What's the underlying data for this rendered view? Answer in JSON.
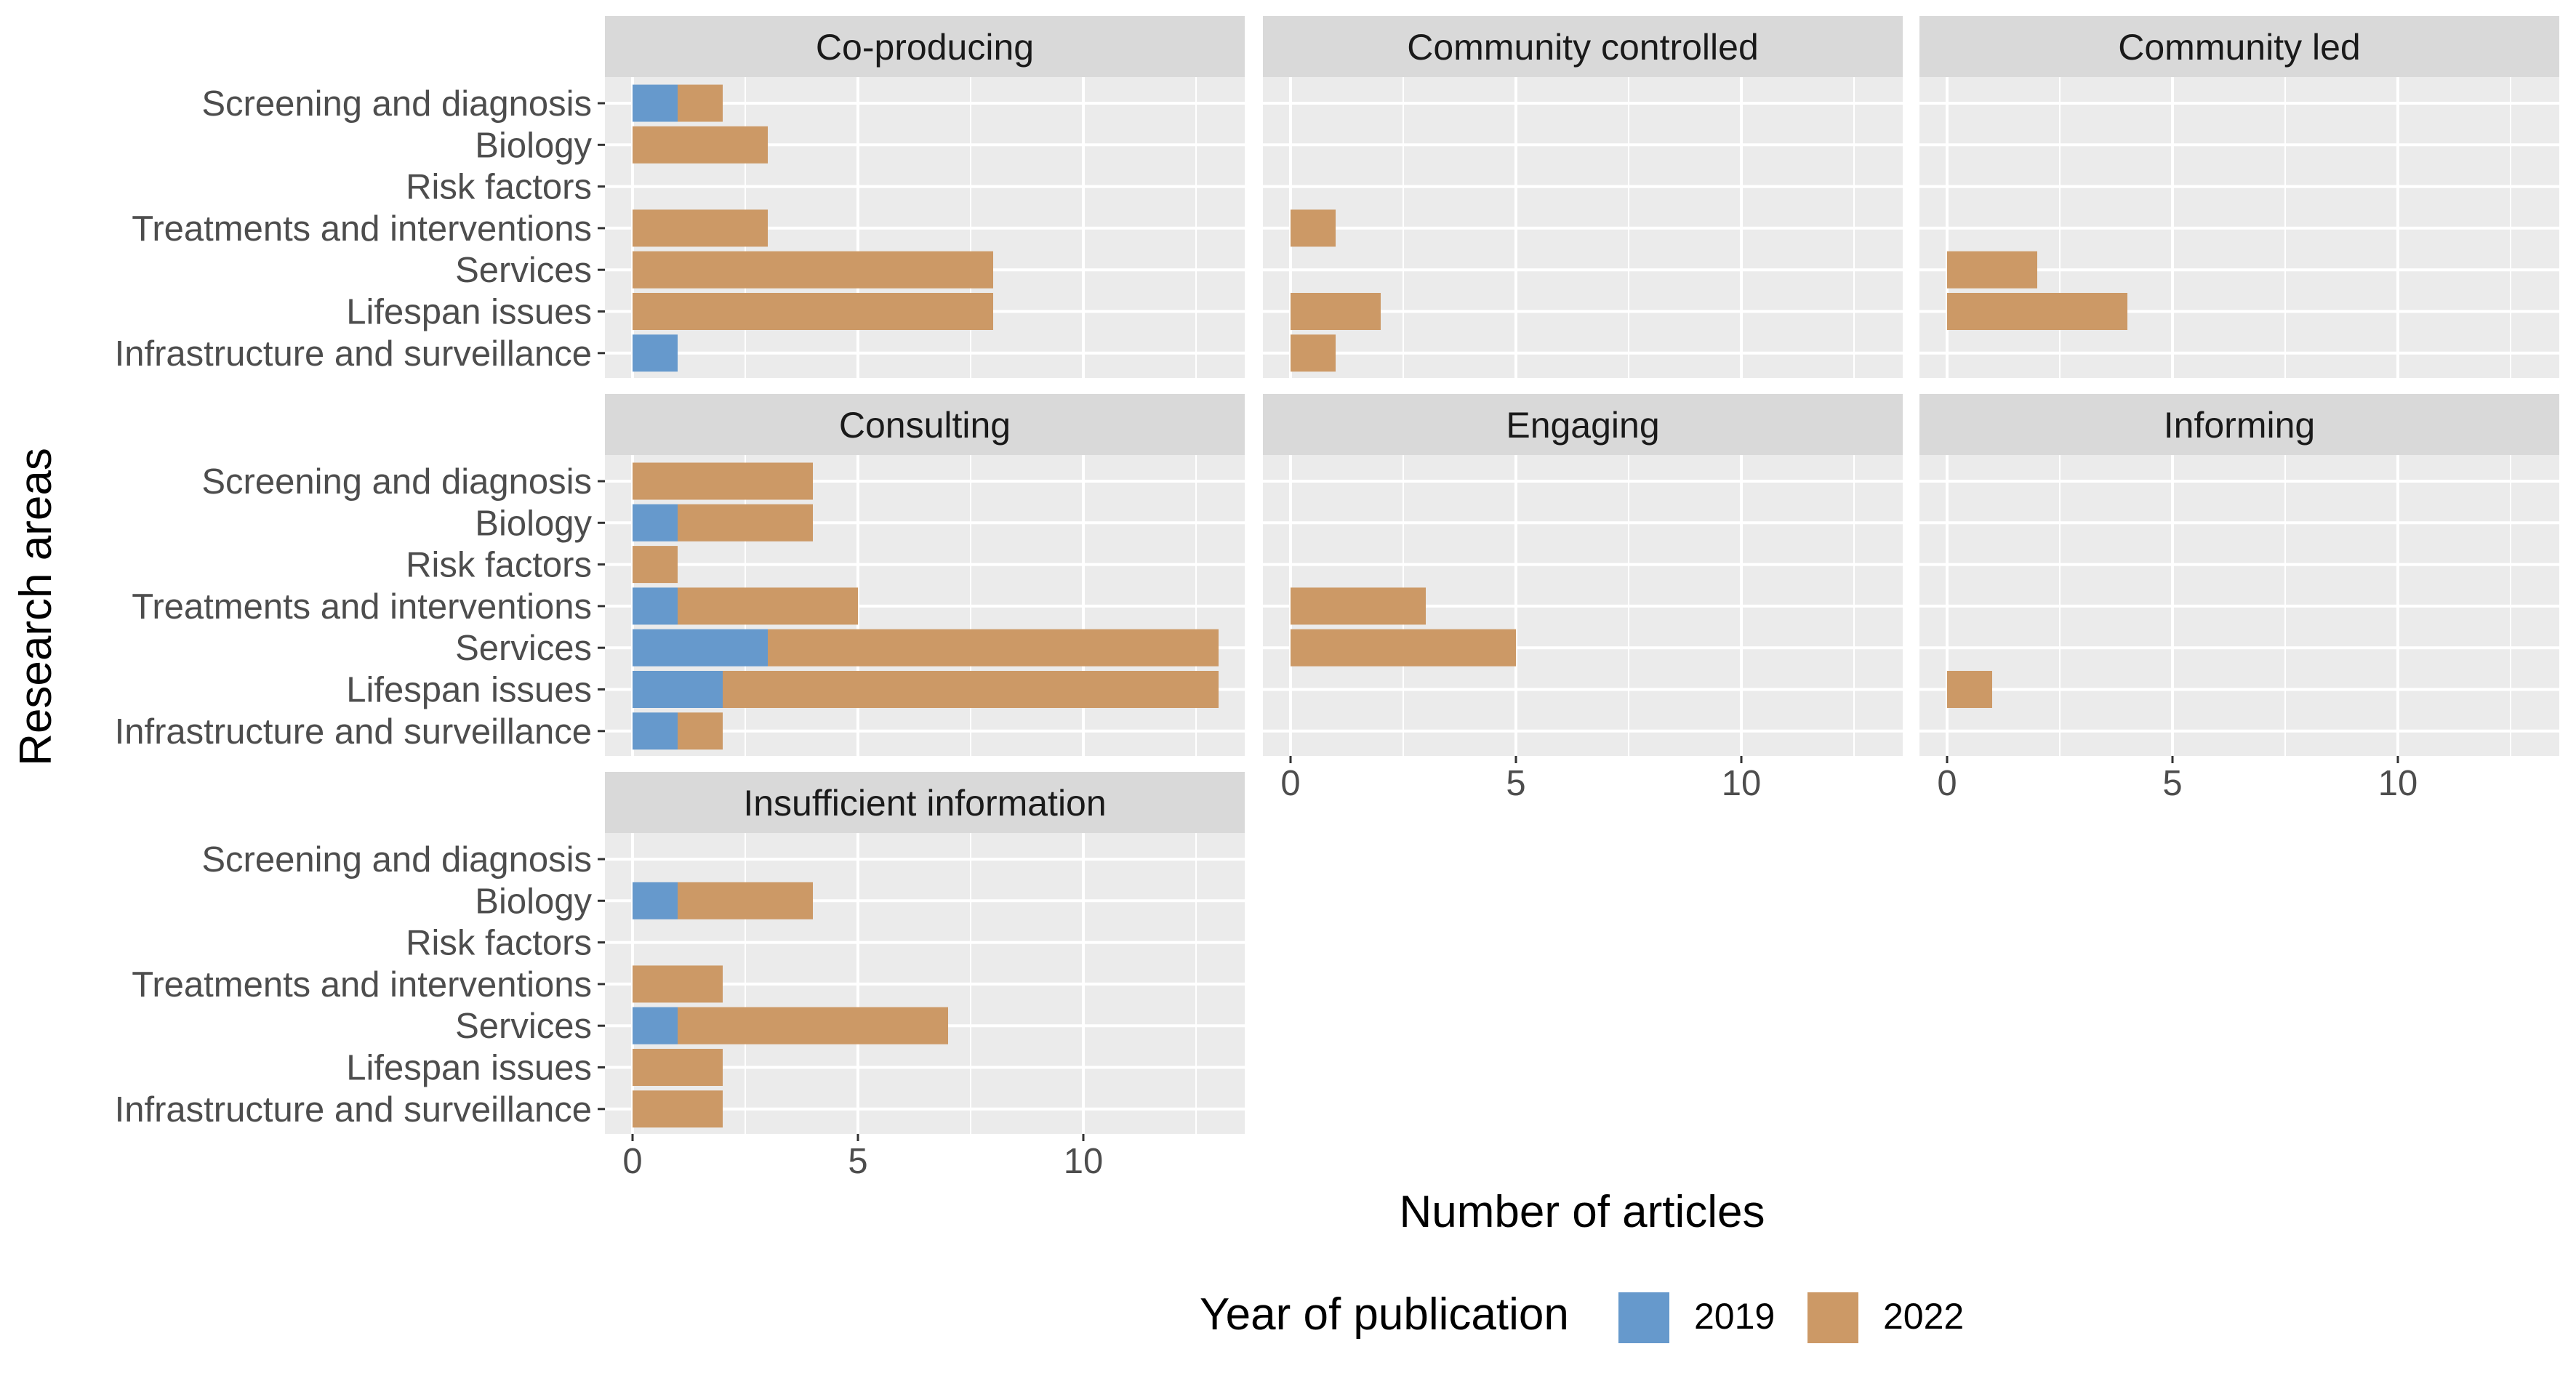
{
  "chart_data": {
    "type": "bar",
    "orientation": "horizontal",
    "stacked": true,
    "xlabel": "Number of articles",
    "ylabel": "Research areas",
    "xlim": [
      0,
      13
    ],
    "xticks": [
      0,
      5,
      10
    ],
    "grid": true,
    "legend": {
      "title": "Year of publication",
      "position": "bottom",
      "entries": [
        {
          "name": "2019",
          "color": "#6699CC"
        },
        {
          "name": "2022",
          "color": "#CC9966"
        }
      ]
    },
    "categories": [
      "Screening and diagnosis",
      "Biology",
      "Risk factors",
      "Treatments and interventions",
      "Services",
      "Lifespan issues",
      "Infrastructure and surveillance"
    ],
    "panels": [
      {
        "title": "Co-producing",
        "series": [
          {
            "name": "2019",
            "values": [
              1,
              0,
              0,
              0,
              0,
              0,
              1
            ]
          },
          {
            "name": "2022",
            "values": [
              1,
              3,
              0,
              3,
              8,
              8,
              0
            ]
          }
        ]
      },
      {
        "title": "Community controlled",
        "series": [
          {
            "name": "2019",
            "values": [
              0,
              0,
              0,
              0,
              0,
              0,
              0
            ]
          },
          {
            "name": "2022",
            "values": [
              0,
              0,
              0,
              1,
              0,
              2,
              1
            ]
          }
        ]
      },
      {
        "title": "Community led",
        "series": [
          {
            "name": "2019",
            "values": [
              0,
              0,
              0,
              0,
              0,
              0,
              0
            ]
          },
          {
            "name": "2022",
            "values": [
              0,
              0,
              0,
              0,
              2,
              4,
              0
            ]
          }
        ]
      },
      {
        "title": "Consulting",
        "series": [
          {
            "name": "2019",
            "values": [
              0,
              1,
              0,
              1,
              3,
              2,
              1
            ]
          },
          {
            "name": "2022",
            "values": [
              4,
              3,
              1,
              4,
              10,
              11,
              1
            ]
          }
        ]
      },
      {
        "title": "Engaging",
        "series": [
          {
            "name": "2019",
            "values": [
              0,
              0,
              0,
              0,
              0,
              0,
              0
            ]
          },
          {
            "name": "2022",
            "values": [
              0,
              0,
              0,
              3,
              5,
              0,
              0
            ]
          }
        ]
      },
      {
        "title": "Informing",
        "series": [
          {
            "name": "2019",
            "values": [
              0,
              0,
              0,
              0,
              0,
              0,
              0
            ]
          },
          {
            "name": "2022",
            "values": [
              0,
              0,
              0,
              0,
              0,
              1,
              0
            ]
          }
        ]
      },
      {
        "title": "Insufficient information",
        "series": [
          {
            "name": "2019",
            "values": [
              0,
              1,
              0,
              0,
              1,
              0,
              0
            ]
          },
          {
            "name": "2022",
            "values": [
              0,
              3,
              0,
              2,
              6,
              2,
              2
            ]
          }
        ]
      }
    ]
  }
}
